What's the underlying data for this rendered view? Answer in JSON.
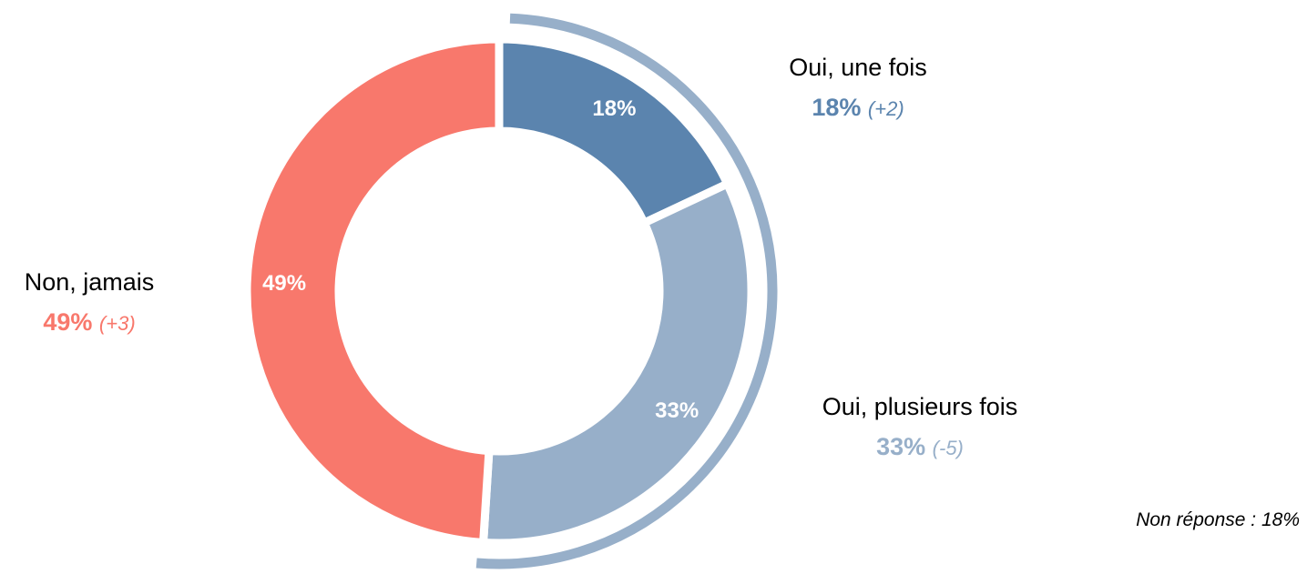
{
  "chart_data": {
    "type": "donut",
    "categories": [
      "Oui, une fois",
      "Oui, plusieurs fois",
      "Non, jamais"
    ],
    "values": [
      18,
      33,
      49
    ],
    "value_labels": [
      "18%",
      "33%",
      "49%"
    ],
    "change_labels": [
      "(+2)",
      "(-5)",
      "(+3)"
    ],
    "colors": [
      "#5b84ae",
      "#97afc9",
      "#f8786c"
    ],
    "annotation": "Non réponse : 18%"
  }
}
